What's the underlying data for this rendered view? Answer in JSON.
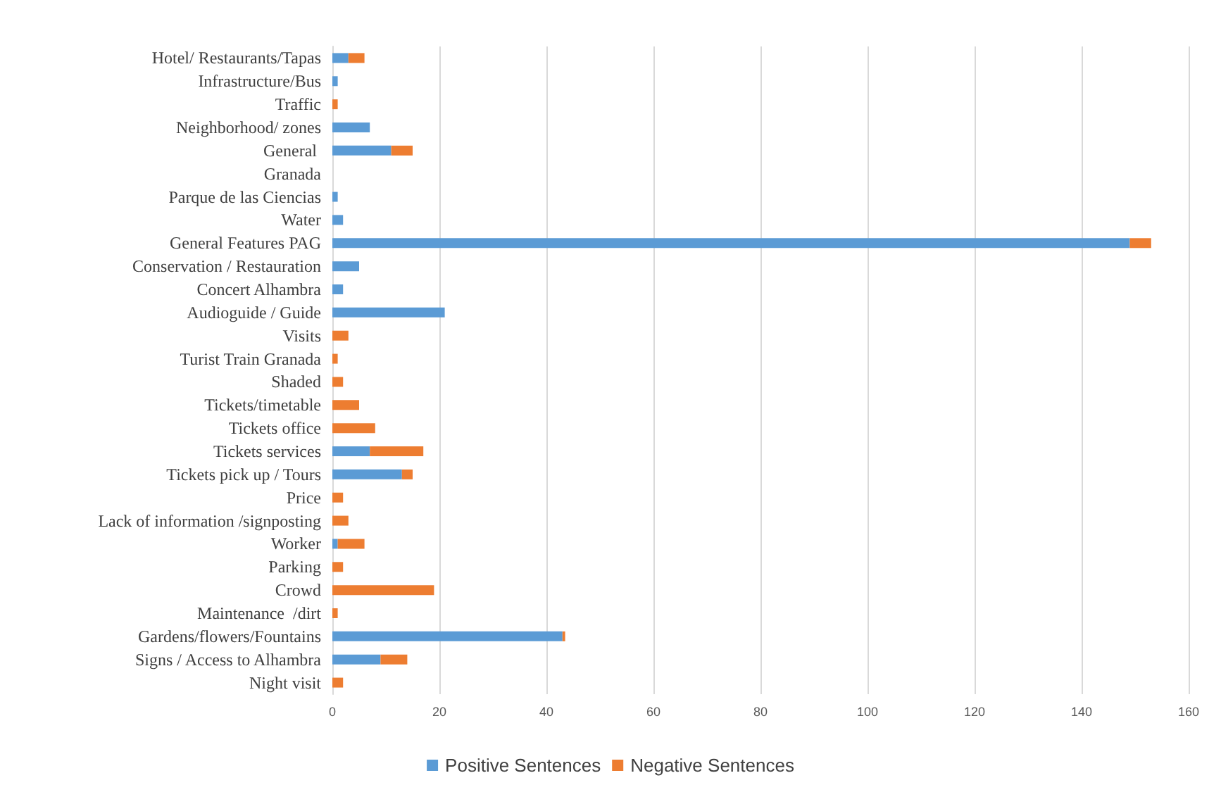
{
  "chart_data": {
    "type": "bar",
    "orientation": "horizontal",
    "stacked": true,
    "categories": [
      "Hotel/ Restaurants/Tapas",
      "Infrastructure/Bus",
      "Traffic",
      "Neighborhood/ zones",
      "General ",
      "Granada",
      "Parque de las Ciencias",
      "Water",
      "General Features PAG",
      "Conservation / Restauration",
      "Concert Alhambra",
      "Audioguide / Guide",
      "Visits",
      "Turist Train Granada",
      "Shaded",
      "Tickets/timetable",
      "Tickets office",
      "Tickets services",
      "Tickets pick up / Tours",
      "Price",
      "Lack of information /signposting",
      "Worker",
      "Parking",
      "Crowd",
      "Maintenance  /dirt",
      "Gardens/flowers/Fountains",
      "Signs / Access to Alhambra",
      "Night visit"
    ],
    "series": [
      {
        "name": "Positive Sentences",
        "color": "#5b9bd5",
        "values": [
          3,
          1,
          null,
          7,
          11,
          null,
          1,
          2,
          149,
          5,
          2,
          21,
          null,
          null,
          null,
          null,
          null,
          7,
          13,
          null,
          null,
          1,
          null,
          null,
          null,
          43,
          9,
          null
        ]
      },
      {
        "name": "Negative Sentences",
        "color": "#ed7d31",
        "values": [
          3,
          null,
          1,
          null,
          4,
          null,
          null,
          null,
          4,
          null,
          null,
          null,
          3,
          1,
          2,
          5,
          8,
          10,
          2,
          2,
          3,
          5,
          2,
          19,
          1,
          0.5,
          5,
          2
        ]
      }
    ],
    "xlim": [
      0,
      160
    ],
    "xticks": [
      0,
      20,
      40,
      60,
      80,
      100,
      120,
      140,
      160
    ],
    "grid": "x",
    "legend": "bottom"
  }
}
